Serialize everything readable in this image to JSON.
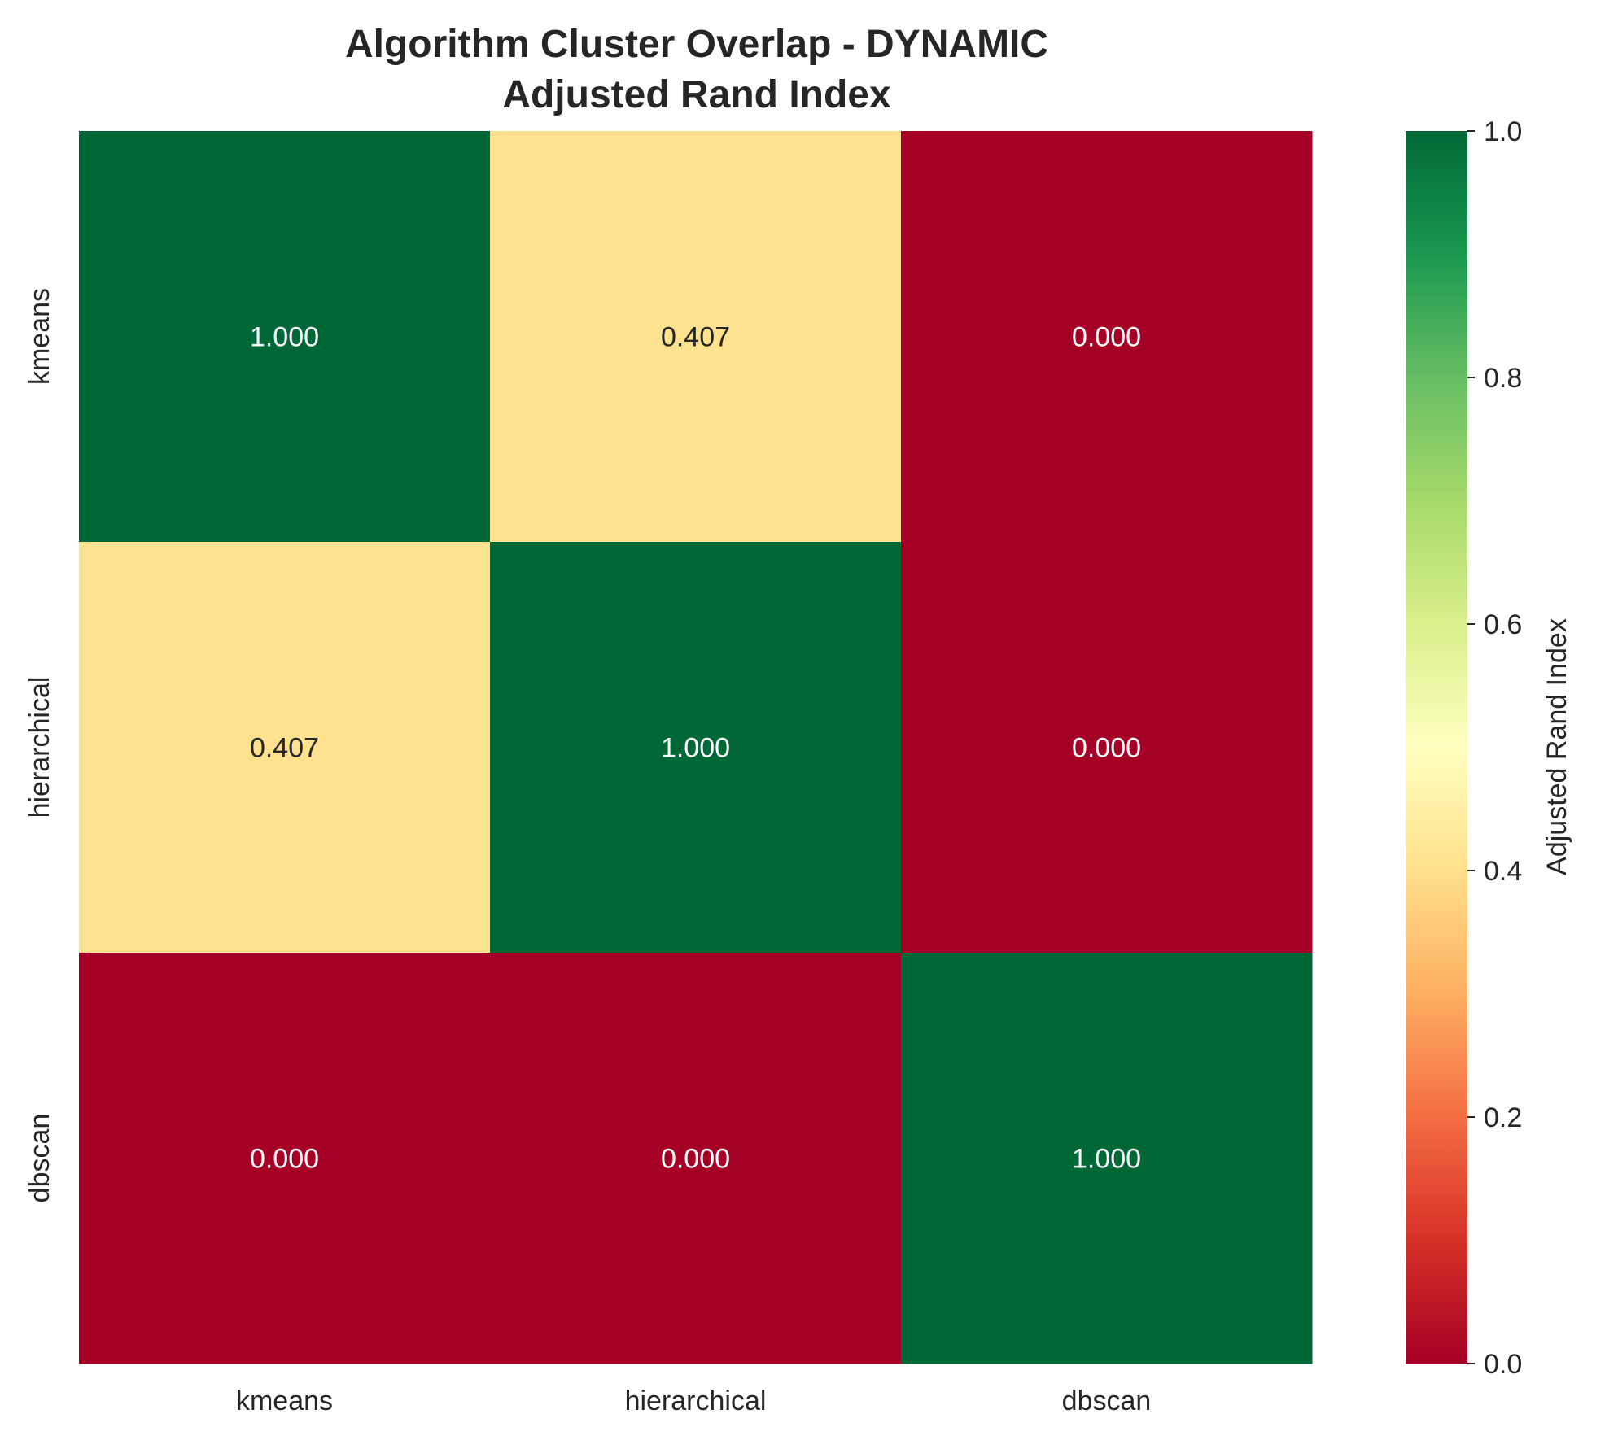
{
  "chart_data": {
    "type": "heatmap",
    "title": "Algorithm Cluster Overlap - DYNAMIC",
    "subtitle": "Adjusted Rand Index",
    "x_categories": [
      "kmeans",
      "hierarchical",
      "dbscan"
    ],
    "y_categories": [
      "kmeans",
      "hierarchical",
      "dbscan"
    ],
    "values": [
      [
        1.0,
        0.407,
        0.0
      ],
      [
        0.407,
        1.0,
        0.0
      ],
      [
        0.0,
        0.0,
        1.0
      ]
    ],
    "value_labels": [
      [
        "1.000",
        "0.407",
        "0.000"
      ],
      [
        "0.407",
        "1.000",
        "0.000"
      ],
      [
        "0.000",
        "0.000",
        "1.000"
      ]
    ],
    "colorbar": {
      "label": "Adjusted Rand Index",
      "range": [
        0,
        1
      ],
      "ticks": [
        0.0,
        0.2,
        0.4,
        0.6,
        0.8,
        1.0
      ],
      "tick_labels": [
        "0.0",
        "0.2",
        "0.4",
        "0.6",
        "0.8",
        "1.0"
      ],
      "colormap": "RdYlGn",
      "colors": [
        "#a50026",
        "#d73027",
        "#f46d43",
        "#fdae61",
        "#fee08b",
        "#ffffbf",
        "#d9ef8b",
        "#a6d96a",
        "#66bd63",
        "#1a9850",
        "#006837"
      ]
    },
    "grid": false
  }
}
